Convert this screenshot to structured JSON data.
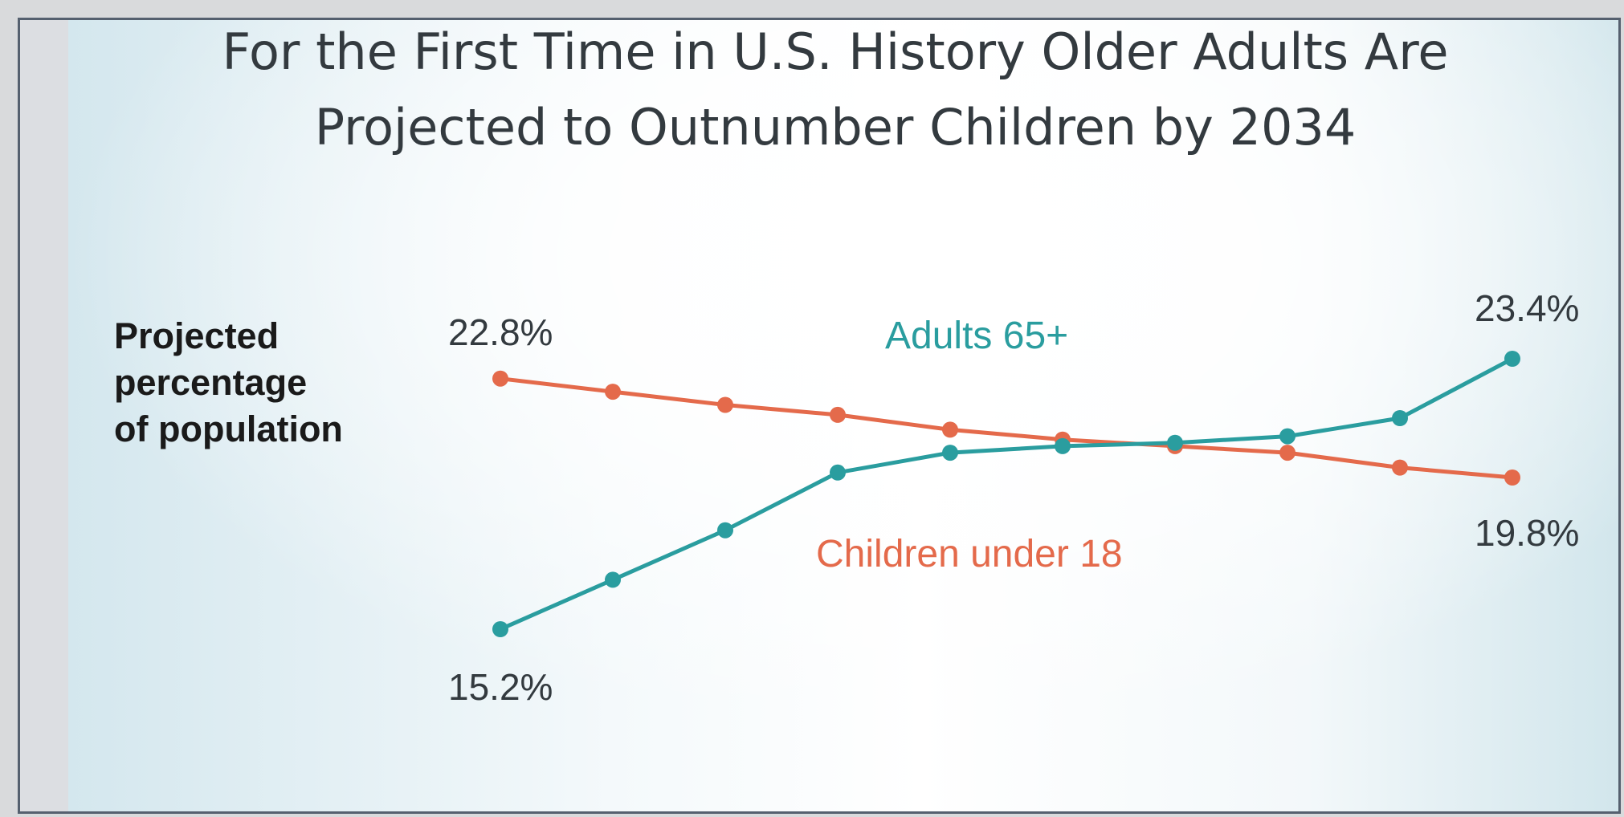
{
  "chart_data": {
    "type": "line",
    "title": "For the First Time in U.S. History Older Adults Are Projected to Outnumber Children by 2034",
    "title_lines": [
      "For the First Time in U.S. History Older Adults Are",
      "Projected to Outnumber Children by 2034"
    ],
    "ylabel_lines": [
      "Projected",
      "percentage",
      "of population"
    ],
    "x": [
      1,
      2,
      3,
      4,
      5,
      6,
      7,
      8,
      9,
      10
    ],
    "series": [
      {
        "name": "Adults 65+",
        "color": "#2a9d9f",
        "values": [
          15.2,
          16.7,
          18.2,
          19.95,
          20.55,
          20.75,
          20.85,
          21.05,
          21.6,
          23.4
        ],
        "start_label": "15.2%",
        "end_label": "23.4%"
      },
      {
        "name": "Children under 18",
        "color": "#e46a4b",
        "values": [
          22.8,
          22.4,
          22.0,
          21.7,
          21.25,
          20.95,
          20.75,
          20.55,
          20.1,
          19.8
        ],
        "start_label": "22.8%",
        "end_label": "19.8%"
      }
    ],
    "grid": false,
    "legend": "inline labels"
  },
  "colors": {
    "frame_border": "#55606f",
    "title_text": "#333a3f"
  }
}
